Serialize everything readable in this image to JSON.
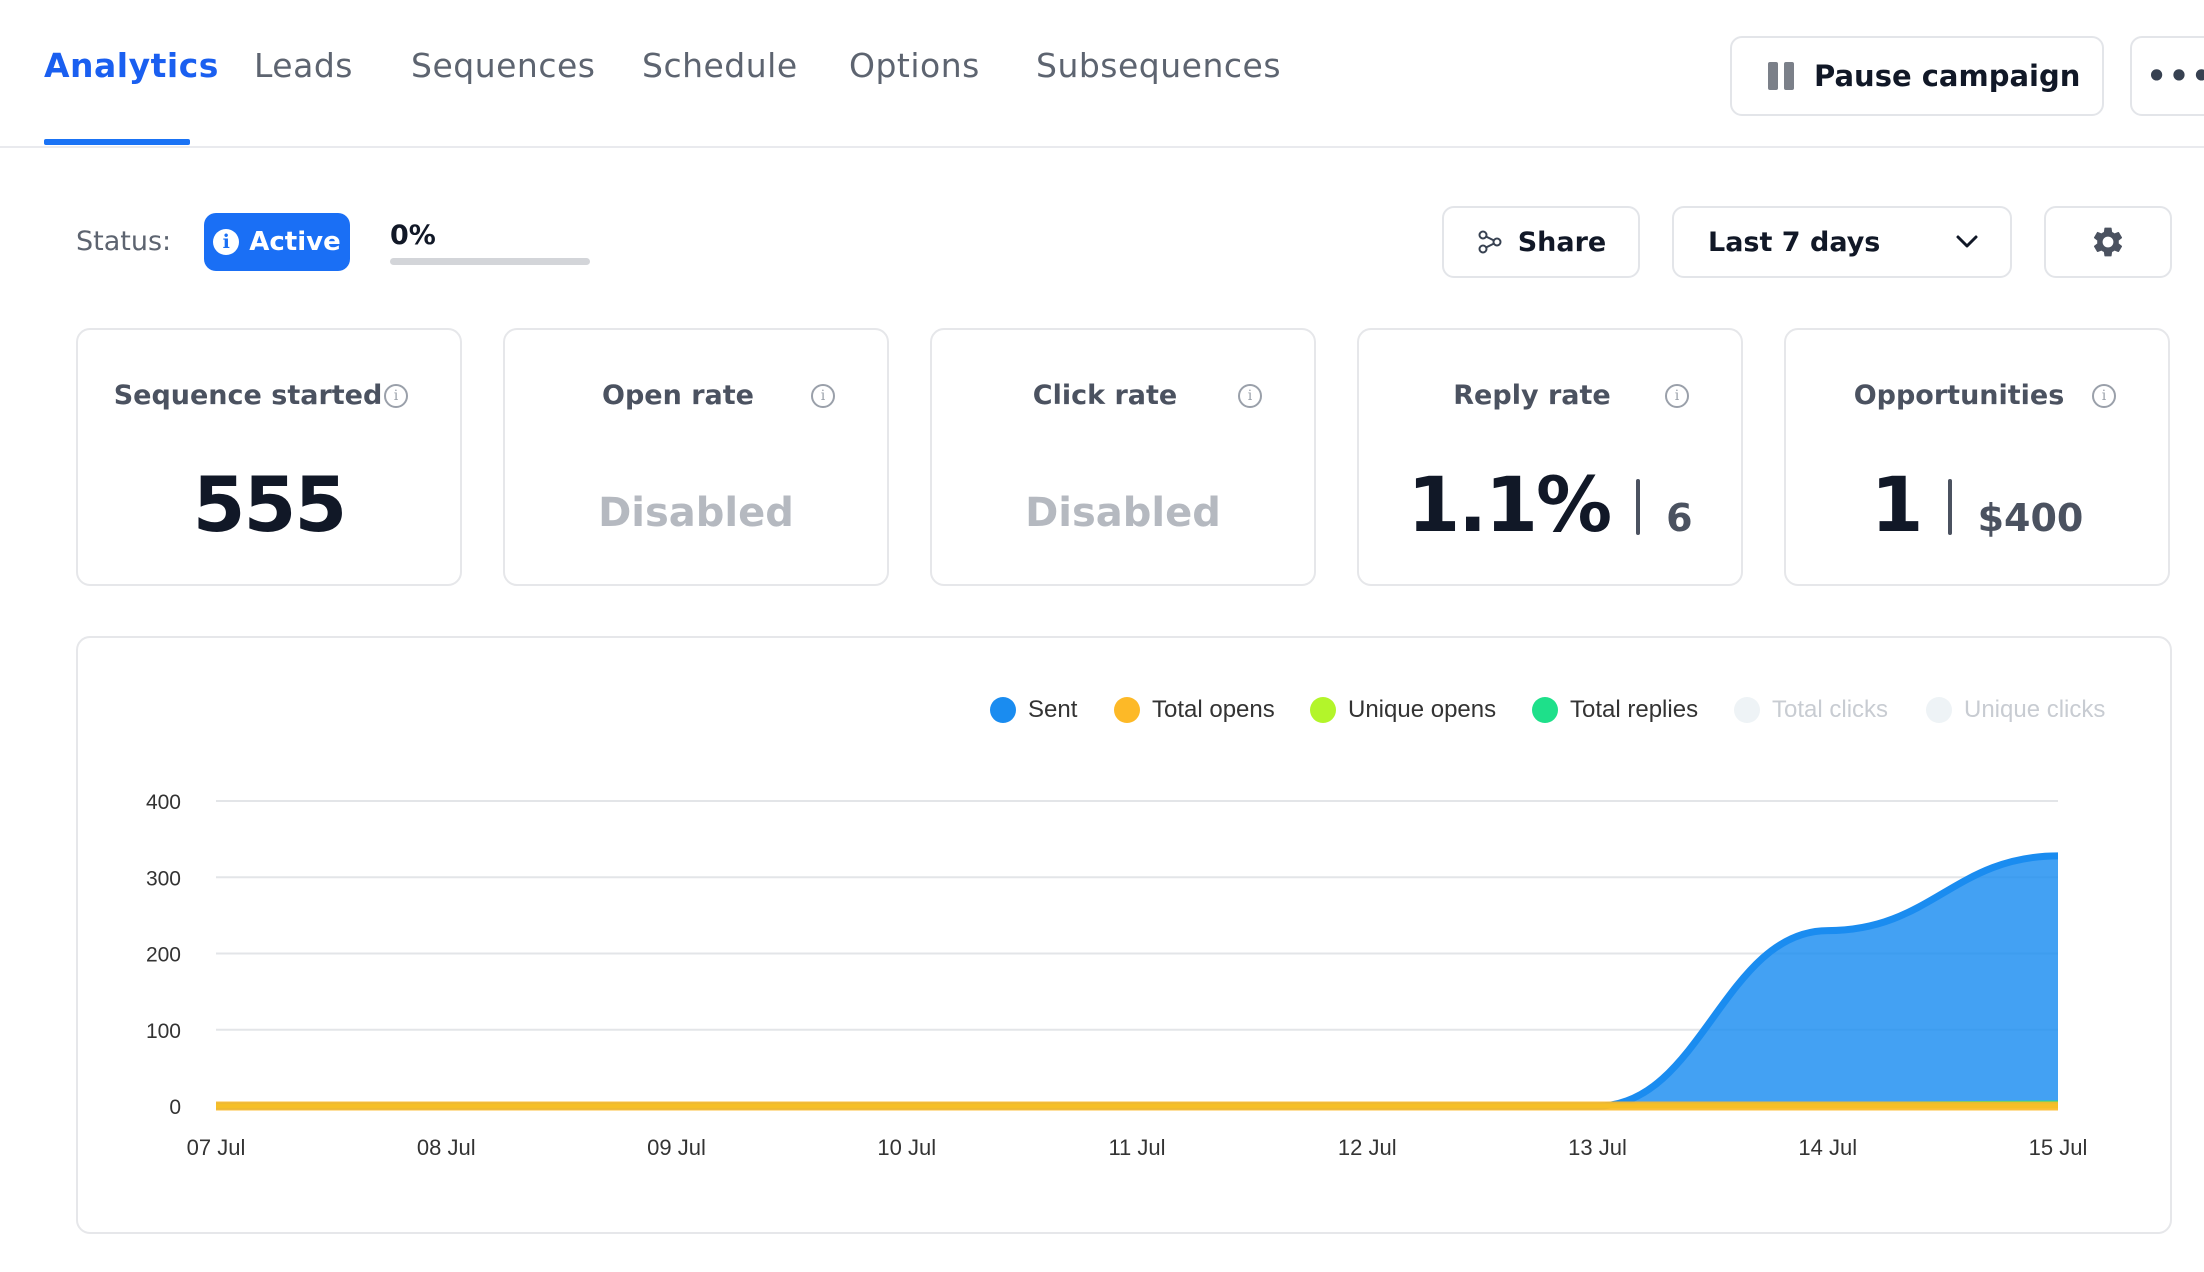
{
  "tabs": [
    {
      "label": "Analytics",
      "active": true
    },
    {
      "label": "Leads"
    },
    {
      "label": "Sequences"
    },
    {
      "label": "Schedule"
    },
    {
      "label": "Options"
    },
    {
      "label": "Subsequences"
    }
  ],
  "header": {
    "pause_label": "Pause campaign",
    "pause_icon": "pause-icon",
    "more_label": "•••"
  },
  "status": {
    "label": "Status:",
    "badge": "Active",
    "badge_icon": "info-icon",
    "progress_text": "0%",
    "progress_value": 0
  },
  "toolbar": {
    "share_label": "Share",
    "share_icon": "share-icon",
    "range_label": "Last 7 days",
    "range_icon": "chevron-down-icon",
    "settings_icon": "gear-icon"
  },
  "cards": [
    {
      "title": "Sequence started",
      "value": "555"
    },
    {
      "title": "Open rate",
      "value": "Disabled"
    },
    {
      "title": "Click rate",
      "value": "Disabled"
    },
    {
      "title": "Reply rate",
      "value": "1.1%",
      "secondary": "6"
    },
    {
      "title": "Opportunities",
      "value": "1",
      "secondary": "$400"
    }
  ],
  "colors": {
    "accent": "#1a73f5",
    "sent": "#1a8cf0",
    "total_opens": "#fdb927",
    "unique_opens": "#b3f52a",
    "total_replies": "#1ee08a",
    "total_clicks": "#eef3f6",
    "unique_clicks": "#eef3f6"
  },
  "chart_data": {
    "type": "area",
    "categories": [
      "07 Jul",
      "08 Jul",
      "09 Jul",
      "10 Jul",
      "11 Jul",
      "12 Jul",
      "13 Jul",
      "14 Jul",
      "15 Jul"
    ],
    "ylim": [
      0,
      400
    ],
    "yticks": [
      "0",
      "100",
      "200",
      "300",
      "400"
    ],
    "legend": [
      "Sent",
      "Total opens",
      "Unique opens",
      "Total replies",
      "Total clicks",
      "Unique clicks"
    ],
    "legend_placement": "top-right",
    "grid": true,
    "series": [
      {
        "name": "Sent",
        "values": [
          0,
          0,
          0,
          0,
          0,
          0,
          0,
          230,
          328
        ]
      },
      {
        "name": "Total opens",
        "values": [
          0,
          0,
          0,
          0,
          0,
          0,
          0,
          0,
          0
        ]
      },
      {
        "name": "Unique opens",
        "values": [
          0,
          0,
          0,
          0,
          0,
          0,
          0,
          0,
          0
        ]
      },
      {
        "name": "Total replies",
        "values": [
          0,
          0,
          0,
          0,
          0,
          0,
          0,
          2,
          4
        ]
      },
      {
        "name": "Total clicks",
        "values": [
          0,
          0,
          0,
          0,
          0,
          0,
          0,
          0,
          0
        ],
        "hidden": true
      },
      {
        "name": "Unique clicks",
        "values": [
          0,
          0,
          0,
          0,
          0,
          0,
          0,
          0,
          0
        ],
        "hidden": true
      }
    ]
  }
}
